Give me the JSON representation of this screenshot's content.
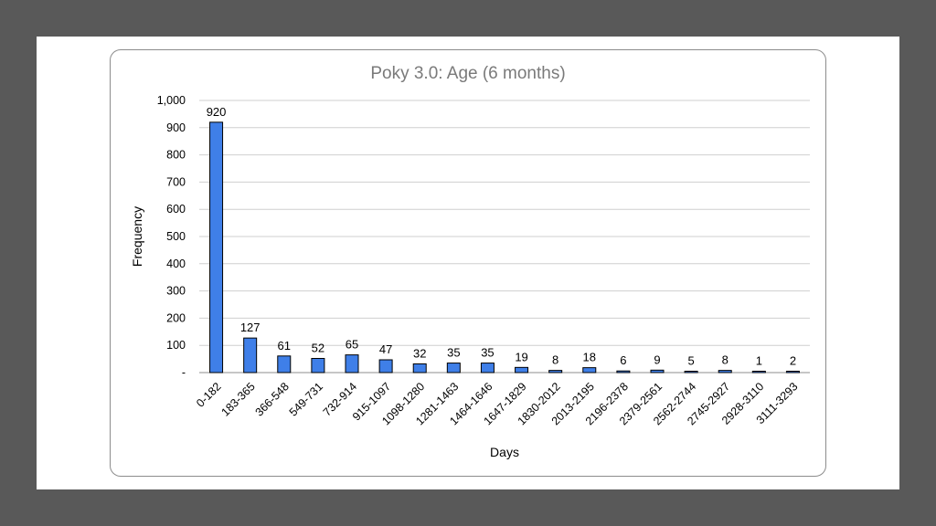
{
  "chart_data": {
    "type": "bar",
    "title": "Poky 3.0: Age (6 months)",
    "xlabel": "Days",
    "ylabel": "Frequency",
    "ylim": [
      0,
      1000
    ],
    "yticks": [
      {
        "value": 0,
        "label": "-"
      },
      {
        "value": 100,
        "label": "100"
      },
      {
        "value": 200,
        "label": "200"
      },
      {
        "value": 300,
        "label": "300"
      },
      {
        "value": 400,
        "label": "400"
      },
      {
        "value": 500,
        "label": "500"
      },
      {
        "value": 600,
        "label": "600"
      },
      {
        "value": 700,
        "label": "700"
      },
      {
        "value": 800,
        "label": "800"
      },
      {
        "value": 900,
        "label": "900"
      },
      {
        "value": 1000,
        "label": "1,000"
      }
    ],
    "categories": [
      "0-182",
      "183-365",
      "366-548",
      "549-731",
      "732-914",
      "915-1097",
      "1098-1280",
      "1281-1463",
      "1464-1646",
      "1647-1829",
      "1830-2012",
      "2013-2195",
      "2196-2378",
      "2379-2561",
      "2562-2744",
      "2745-2927",
      "2928-3110",
      "3111-3293"
    ],
    "values": [
      920,
      127,
      61,
      52,
      65,
      47,
      32,
      35,
      35,
      19,
      8,
      18,
      6,
      9,
      5,
      8,
      1,
      2
    ],
    "grid": true,
    "legend": "none",
    "colors": {
      "bar": "#3f7fe8",
      "bar_edge": "#000000",
      "grid": "#cfcfcf",
      "title": "#7a7a7a"
    }
  }
}
